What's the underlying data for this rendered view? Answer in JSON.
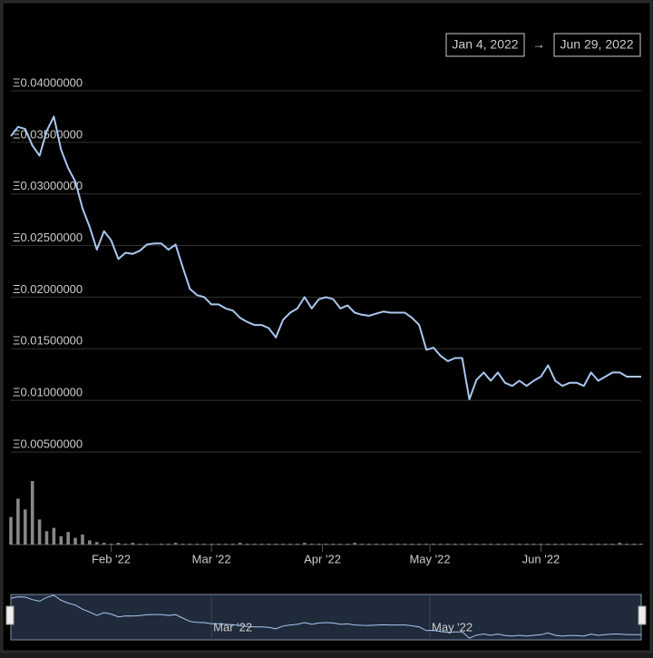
{
  "chart_data": {
    "type": "line",
    "range_from": "Jan 4, 2022",
    "range_separator": "→",
    "range_to": "Jun 29, 2022",
    "x": [
      "2022-01-04",
      "2022-01-06",
      "2022-01-08",
      "2022-01-10",
      "2022-01-12",
      "2022-01-14",
      "2022-01-16",
      "2022-01-18",
      "2022-01-20",
      "2022-01-22",
      "2022-01-24",
      "2022-01-26",
      "2022-01-28",
      "2022-01-30",
      "2022-02-01",
      "2022-02-03",
      "2022-02-05",
      "2022-02-07",
      "2022-02-09",
      "2022-02-11",
      "2022-02-13",
      "2022-02-15",
      "2022-02-17",
      "2022-02-19",
      "2022-02-21",
      "2022-02-23",
      "2022-02-25",
      "2022-02-27",
      "2022-03-01",
      "2022-03-03",
      "2022-03-05",
      "2022-03-07",
      "2022-03-09",
      "2022-03-11",
      "2022-03-13",
      "2022-03-15",
      "2022-03-17",
      "2022-03-19",
      "2022-03-21",
      "2022-03-23",
      "2022-03-25",
      "2022-03-27",
      "2022-03-29",
      "2022-03-31",
      "2022-04-02",
      "2022-04-04",
      "2022-04-06",
      "2022-04-08",
      "2022-04-10",
      "2022-04-12",
      "2022-04-14",
      "2022-04-16",
      "2022-04-18",
      "2022-04-20",
      "2022-04-22",
      "2022-04-24",
      "2022-04-26",
      "2022-04-28",
      "2022-04-30",
      "2022-05-02",
      "2022-05-04",
      "2022-05-06",
      "2022-05-08",
      "2022-05-10",
      "2022-05-12",
      "2022-05-14",
      "2022-05-16",
      "2022-05-18",
      "2022-05-20",
      "2022-05-22",
      "2022-05-24",
      "2022-05-26",
      "2022-05-28",
      "2022-05-30",
      "2022-06-01",
      "2022-06-03",
      "2022-06-05",
      "2022-06-07",
      "2022-06-09",
      "2022-06-11",
      "2022-06-13",
      "2022-06-15",
      "2022-06-17",
      "2022-06-19",
      "2022-06-21",
      "2022-06-23",
      "2022-06-25",
      "2022-06-27",
      "2022-06-29"
    ],
    "values": [
      0.0356,
      0.0365,
      0.0363,
      0.0347,
      0.0337,
      0.0361,
      0.0375,
      0.0343,
      0.0325,
      0.0312,
      0.0286,
      0.0268,
      0.0246,
      0.0264,
      0.0255,
      0.0237,
      0.0243,
      0.0242,
      0.0245,
      0.0251,
      0.0252,
      0.0252,
      0.0246,
      0.0251,
      0.0229,
      0.0208,
      0.0202,
      0.02,
      0.0193,
      0.0193,
      0.0189,
      0.0187,
      0.018,
      0.0176,
      0.0173,
      0.0173,
      0.017,
      0.0161,
      0.0178,
      0.0185,
      0.0189,
      0.02,
      0.0189,
      0.0198,
      0.02,
      0.0198,
      0.0189,
      0.0192,
      0.0185,
      0.0183,
      0.0182,
      0.0184,
      0.0186,
      0.0185,
      0.0185,
      0.0185,
      0.018,
      0.0173,
      0.0149,
      0.0151,
      0.0143,
      0.0138,
      0.0141,
      0.0141,
      0.0101,
      0.012,
      0.0127,
      0.0119,
      0.0127,
      0.0117,
      0.0114,
      0.0119,
      0.0114,
      0.0119,
      0.0123,
      0.0134,
      0.0119,
      0.0114,
      0.0117,
      0.0117,
      0.0114,
      0.0127,
      0.0119,
      0.0123,
      0.0127,
      0.0127,
      0.0123,
      0.0123,
      0.0123
    ],
    "color": "#a9c8f0",
    "xlim": [
      "2022-01-04",
      "2022-06-29"
    ],
    "xticks": [
      {
        "value": "2022-02-01",
        "label": "Feb '22"
      },
      {
        "value": "2022-03-01",
        "label": "Mar '22"
      },
      {
        "value": "2022-04-01",
        "label": "Apr '22"
      },
      {
        "value": "2022-05-01",
        "label": "May '22"
      },
      {
        "value": "2022-06-01",
        "label": "Jun '22"
      }
    ],
    "ylim": [
      0.005,
      0.04
    ],
    "yticks": [
      {
        "value": 0.04,
        "label": "Ξ0.04000000"
      },
      {
        "value": 0.035,
        "label": "Ξ0.03500000"
      },
      {
        "value": 0.03,
        "label": "Ξ0.03000000"
      },
      {
        "value": 0.025,
        "label": "Ξ0.02500000"
      },
      {
        "value": 0.02,
        "label": "Ξ0.02000000"
      },
      {
        "value": 0.015,
        "label": "Ξ0.01500000"
      },
      {
        "value": 0.01,
        "label": "Ξ0.01000000"
      },
      {
        "value": 0.005,
        "label": "Ξ0.00500000"
      }
    ],
    "grid": true,
    "volume": {
      "color": "#888888",
      "ylim": [
        0,
        100
      ],
      "values": [
        33,
        55,
        42,
        76,
        30,
        16,
        20,
        10,
        15,
        8,
        12,
        5,
        3,
        2,
        1,
        2,
        1,
        2,
        1,
        1,
        0,
        1,
        1,
        2,
        1,
        1,
        1,
        1,
        1,
        1,
        1,
        1,
        2,
        1,
        1,
        1,
        1,
        1,
        1,
        1,
        1,
        2,
        1,
        1,
        1,
        1,
        1,
        1,
        2,
        1,
        1,
        1,
        1,
        1,
        1,
        1,
        1,
        1,
        1,
        1,
        1,
        1,
        1,
        1,
        1,
        1,
        1,
        1,
        1,
        1,
        1,
        1,
        1,
        1,
        1,
        1,
        1,
        1,
        1,
        1,
        1,
        1,
        1,
        1,
        1,
        2,
        1,
        1,
        1
      ]
    },
    "navigator": {
      "ylim": [
        0.009,
        0.038
      ],
      "xticks": [
        {
          "value": "2022-03-01",
          "label": "Mar '22"
        },
        {
          "value": "2022-05-01",
          "label": "May '22"
        }
      ]
    }
  }
}
